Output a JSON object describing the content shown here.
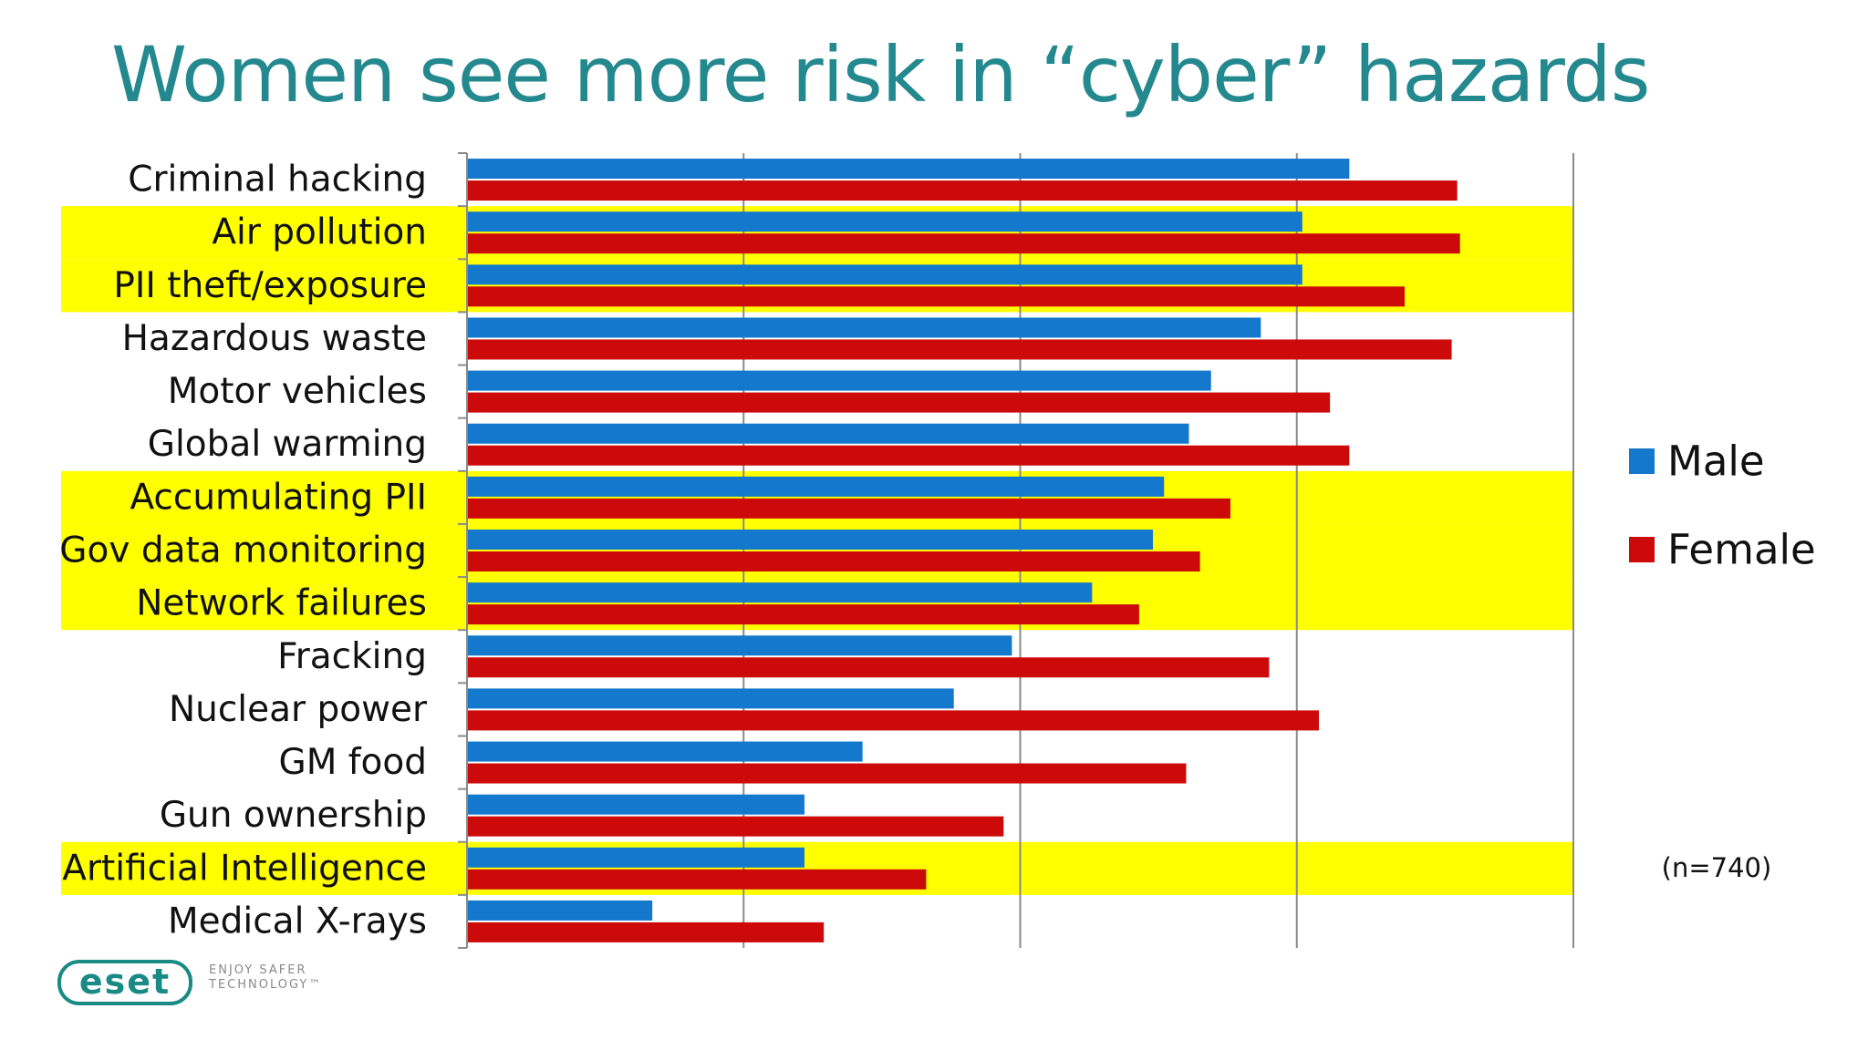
{
  "chart_data": {
    "type": "bar",
    "orientation": "horizontal",
    "title": "Women see more risk in “cyber” hazards",
    "categories": [
      "Criminal hacking",
      "Air pollution",
      "PII theft/exposure",
      "Hazardous waste",
      "Motor vehicles",
      "Global warming",
      "Accumulating PII",
      "Gov data monitoring",
      "Network failures",
      "Fracking",
      "Nuclear power",
      "GM food",
      "Gun ownership",
      "Artificial Intelligence",
      "Medical X-rays"
    ],
    "highlighted_categories": [
      "Air pollution",
      "PII theft/exposure",
      "Accumulating PII",
      "Gov data monitoring",
      "Network failures",
      "Artificial Intelligence"
    ],
    "series": [
      {
        "name": "Male",
        "color": "#1478cc",
        "values": [
          3.19,
          3.02,
          3.02,
          2.87,
          2.69,
          2.61,
          2.52,
          2.48,
          2.26,
          1.97,
          1.76,
          1.43,
          1.22,
          1.22,
          0.67
        ]
      },
      {
        "name": "Female",
        "color": "#cc0a0a",
        "values": [
          3.58,
          3.59,
          3.39,
          3.56,
          3.12,
          3.19,
          2.76,
          2.65,
          2.43,
          2.9,
          3.08,
          2.6,
          1.94,
          1.66,
          1.29
        ]
      }
    ],
    "xlim": [
      0,
      4
    ],
    "gridlines": [
      1,
      2,
      3,
      4
    ],
    "grid": true,
    "tick_labels_shown": false,
    "legend_position": "right",
    "highlight_color": "#ffff00",
    "note": "(n=740)"
  },
  "logo": {
    "name": "eset",
    "tagline": "ENJOY SAFER\nTECHNOLOGY™"
  }
}
